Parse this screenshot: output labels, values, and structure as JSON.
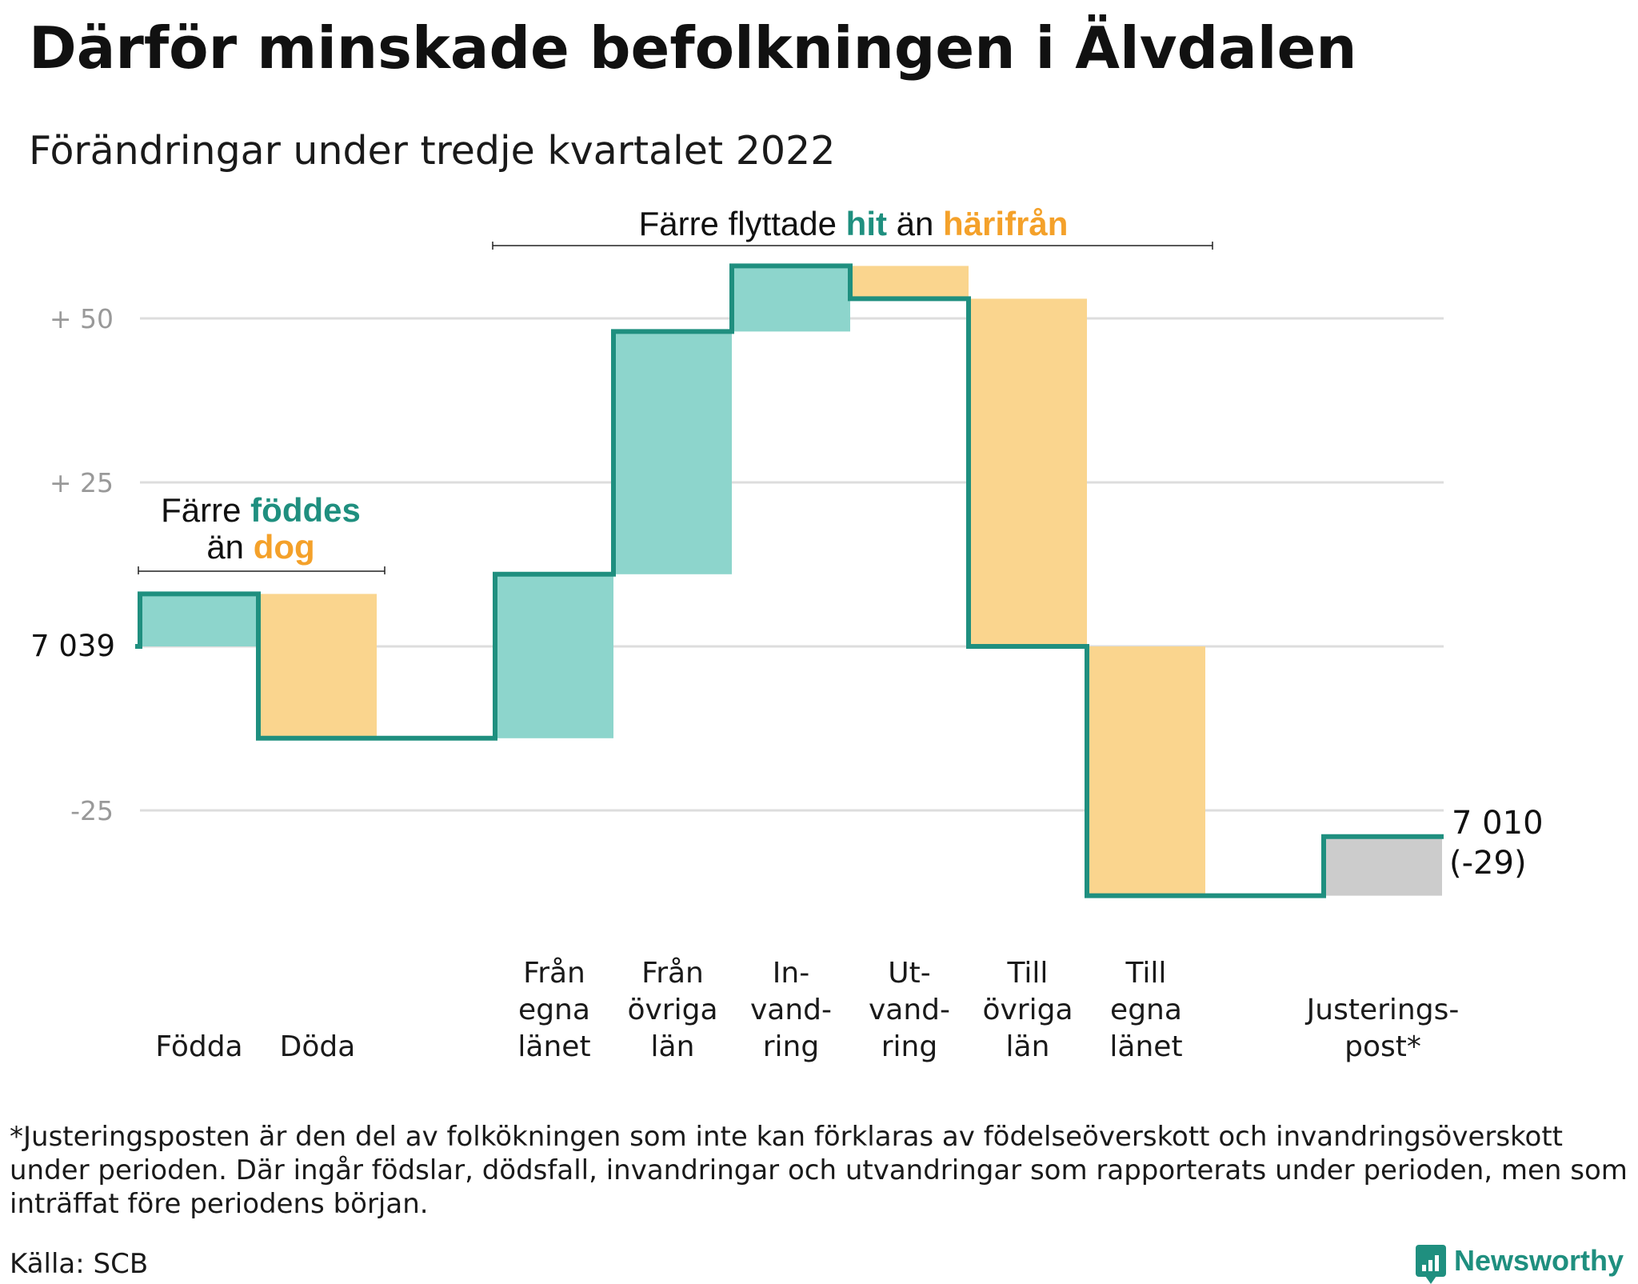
{
  "title": "Därför minskade befolkningen i Älvdalen",
  "subtitle": "Förändringar under tredje kvartalet 2022",
  "colors": {
    "line": "#1f8f7f",
    "increase": "#8dd5cc",
    "decrease": "#fad58e",
    "adjustment": "#cccccc",
    "teal_text": "#1f8f7f",
    "orange_text": "#f4a12a",
    "grid": "#dddddd",
    "tick_text": "#999999"
  },
  "annotations": {
    "births": {
      "pre": "Färre ",
      "hl1": "föddes",
      "mid": "än ",
      "hl2": "dog"
    },
    "moves": {
      "pre": "Färre flyttade ",
      "hl1": "hit",
      "mid": " än ",
      "hl2": "härifrån"
    }
  },
  "chart_data": {
    "type": "waterfall",
    "start_label": "7 039",
    "end_label": "7 010",
    "end_change_label": "(-29)",
    "start_value": 7039,
    "end_value": 7010,
    "y_ticks": [
      {
        "value": 50,
        "label": "+ 50"
      },
      {
        "value": 25,
        "label": "+ 25"
      },
      {
        "value": 0,
        "label": "7 039"
      },
      {
        "value": -25,
        "label": "-25"
      }
    ],
    "ylim": [
      -43,
      60
    ],
    "grid": true,
    "steps": [
      {
        "label": [
          "Födda"
        ],
        "change": 8,
        "kind": "increase"
      },
      {
        "label": [
          "Döda"
        ],
        "change": -22,
        "kind": "decrease"
      },
      {
        "label": [],
        "change": 0,
        "kind": "gap"
      },
      {
        "label": [
          "Från",
          "egna",
          "länet"
        ],
        "change": 25,
        "kind": "increase"
      },
      {
        "label": [
          "Från",
          "övriga",
          "län"
        ],
        "change": 37,
        "kind": "increase"
      },
      {
        "label": [
          "In-",
          "vand-",
          "ring"
        ],
        "change": 10,
        "kind": "increase"
      },
      {
        "label": [
          "Ut-",
          "vand-",
          "ring"
        ],
        "change": -5,
        "kind": "decrease"
      },
      {
        "label": [
          "Till",
          "övriga",
          "län"
        ],
        "change": -53,
        "kind": "decrease"
      },
      {
        "label": [
          "Till",
          "egna",
          "länet"
        ],
        "change": -38,
        "kind": "decrease"
      },
      {
        "label": [],
        "change": 0,
        "kind": "gap"
      },
      {
        "label": [
          "Justerings-",
          "post*"
        ],
        "change": 9,
        "kind": "adjustment"
      }
    ]
  },
  "footnote": "*Justeringsposten är den del av folkökningen som inte kan förklaras av födelseöverskott och invandringsöverskott under perioden. Där ingår födslar, dödsfall, invandringar och utvandringar som rapporterats under perioden, men som inträffat före periodens början.",
  "source": "Källa: SCB",
  "brand": "Newsworthy"
}
